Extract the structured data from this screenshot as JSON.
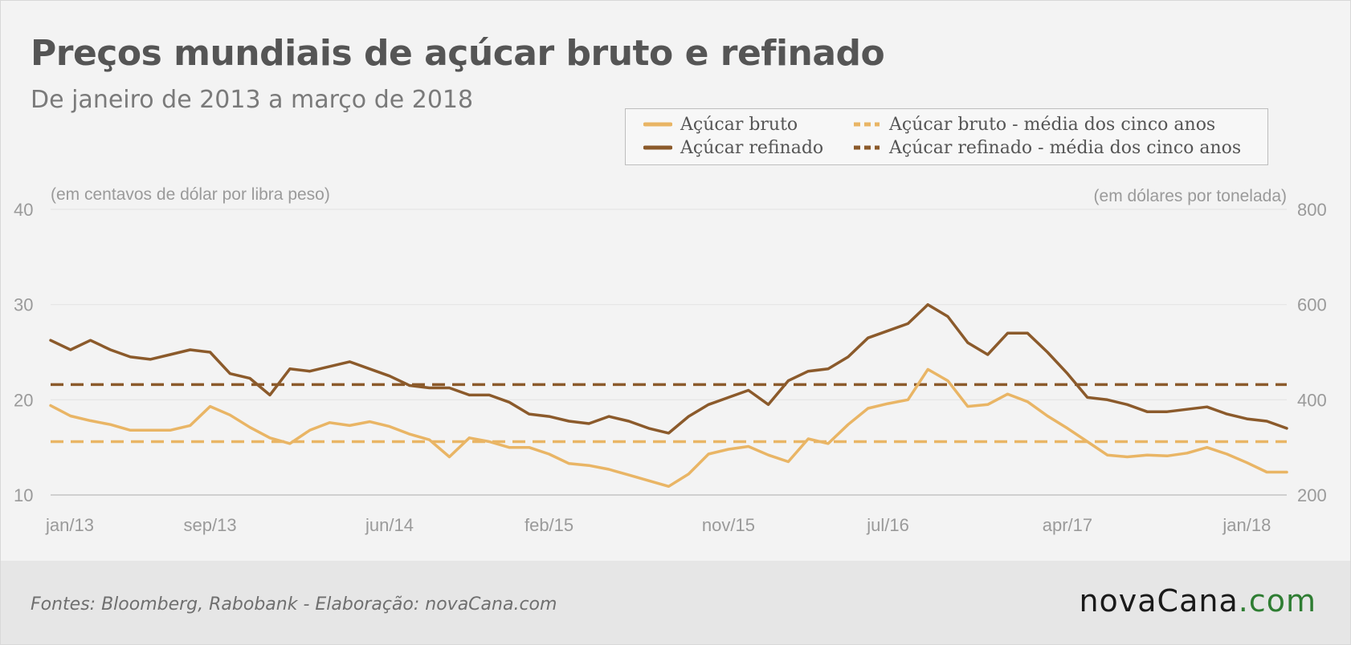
{
  "title": "Preços mundiais de açúcar bruto e refinado",
  "subtitle": "De janeiro de 2013 a março de 2018",
  "source": "Fontes: Bloomberg, Rabobank - Elaboração: novaCana.com",
  "logo": {
    "name": "novaCana",
    "tld": ".com"
  },
  "colors": {
    "bruto": "#e9b565",
    "refinado": "#8b5a2b",
    "grid": "#e4e4e4",
    "axis_text": "#9a9a9a"
  },
  "chart_data": {
    "type": "line",
    "title": "Preços mundiais de açúcar bruto e refinado",
    "subtitle": "De janeiro de 2013 a março de 2018",
    "left_axis": {
      "label": "(em centavos de dólar por libra peso)",
      "range": [
        10,
        40
      ],
      "ticks": [
        10,
        20,
        30,
        40
      ]
    },
    "right_axis": {
      "label": "(em dólares por tonelada)",
      "range": [
        200,
        800
      ],
      "ticks": [
        200,
        400,
        600,
        800
      ]
    },
    "x_range": [
      "2013-01",
      "2018-03"
    ],
    "x_ticks": [
      "jan/13",
      "sep/13",
      "jun/14",
      "feb/15",
      "nov/15",
      "jul/16",
      "apr/17",
      "jan/18"
    ],
    "x_tick_dates": [
      "2013-01",
      "2013-09",
      "2014-06",
      "2015-02",
      "2015-11",
      "2016-07",
      "2017-04",
      "2018-01"
    ],
    "grid": true,
    "legend_position": "top-right",
    "legend": [
      {
        "label": "Açúcar bruto",
        "style": "solid",
        "color": "#e9b565"
      },
      {
        "label": "Açúcar bruto - média dos cinco anos",
        "style": "dashed",
        "color": "#e9b565"
      },
      {
        "label": "Açúcar refinado",
        "style": "solid",
        "color": "#8b5a2b"
      },
      {
        "label": "Açúcar refinado - média dos cinco anos",
        "style": "dashed",
        "color": "#8b5a2b"
      }
    ],
    "series": [
      {
        "name": "Açúcar bruto",
        "axis": "left",
        "color": "#e9b565",
        "x": [
          "2013-01",
          "2013-02",
          "2013-03",
          "2013-04",
          "2013-05",
          "2013-06",
          "2013-07",
          "2013-08",
          "2013-09",
          "2013-10",
          "2013-11",
          "2013-12",
          "2014-01",
          "2014-02",
          "2014-03",
          "2014-04",
          "2014-05",
          "2014-06",
          "2014-07",
          "2014-08",
          "2014-09",
          "2014-10",
          "2014-11",
          "2014-12",
          "2015-01",
          "2015-02",
          "2015-03",
          "2015-04",
          "2015-05",
          "2015-06",
          "2015-07",
          "2015-08",
          "2015-09",
          "2015-10",
          "2015-11",
          "2015-12",
          "2016-01",
          "2016-02",
          "2016-03",
          "2016-04",
          "2016-05",
          "2016-06",
          "2016-07",
          "2016-08",
          "2016-09",
          "2016-10",
          "2016-11",
          "2016-12",
          "2017-01",
          "2017-02",
          "2017-03",
          "2017-04",
          "2017-05",
          "2017-06",
          "2017-07",
          "2017-08",
          "2017-09",
          "2017-10",
          "2017-11",
          "2017-12",
          "2018-01",
          "2018-02",
          "2018-03"
        ],
        "y": [
          19.4,
          18.3,
          17.8,
          17.4,
          16.8,
          16.8,
          16.8,
          17.3,
          19.3,
          18.4,
          17.1,
          16.0,
          15.4,
          16.8,
          17.6,
          17.3,
          17.7,
          17.2,
          16.4,
          15.8,
          14.0,
          16.0,
          15.6,
          15.0,
          15.0,
          14.3,
          13.3,
          13.1,
          12.7,
          12.1,
          11.5,
          10.9,
          12.2,
          14.3,
          14.8,
          15.1,
          14.2,
          13.5,
          15.9,
          15.4,
          17.4,
          19.1,
          19.6,
          20.0,
          23.2,
          22.0,
          19.3,
          19.5,
          20.6,
          19.8,
          18.3,
          17.0,
          15.6,
          14.2,
          14.0,
          14.2,
          14.1,
          14.4,
          15.0,
          14.3,
          13.4,
          12.4,
          12.4
        ]
      },
      {
        "name": "Açúcar refinado",
        "axis": "right",
        "color": "#8b5a2b",
        "x": [
          "2013-01",
          "2013-02",
          "2013-03",
          "2013-04",
          "2013-05",
          "2013-06",
          "2013-07",
          "2013-08",
          "2013-09",
          "2013-10",
          "2013-11",
          "2013-12",
          "2014-01",
          "2014-02",
          "2014-03",
          "2014-04",
          "2014-05",
          "2014-06",
          "2014-07",
          "2014-08",
          "2014-09",
          "2014-10",
          "2014-11",
          "2014-12",
          "2015-01",
          "2015-02",
          "2015-03",
          "2015-04",
          "2015-05",
          "2015-06",
          "2015-07",
          "2015-08",
          "2015-09",
          "2015-10",
          "2015-11",
          "2015-12",
          "2016-01",
          "2016-02",
          "2016-03",
          "2016-04",
          "2016-05",
          "2016-06",
          "2016-07",
          "2016-08",
          "2016-09",
          "2016-10",
          "2016-11",
          "2016-12",
          "2017-01",
          "2017-02",
          "2017-03",
          "2017-04",
          "2017-05",
          "2017-06",
          "2017-07",
          "2017-08",
          "2017-09",
          "2017-10",
          "2017-11",
          "2017-12",
          "2018-01",
          "2018-02",
          "2018-03"
        ],
        "y": [
          525,
          505,
          525,
          505,
          490,
          485,
          495,
          505,
          500,
          455,
          445,
          410,
          465,
          460,
          470,
          480,
          465,
          450,
          430,
          425,
          425,
          410,
          410,
          395,
          370,
          365,
          355,
          350,
          365,
          355,
          340,
          330,
          365,
          390,
          405,
          420,
          390,
          440,
          460,
          465,
          490,
          530,
          545,
          560,
          600,
          575,
          520,
          495,
          540,
          540,
          500,
          455,
          405,
          400,
          390,
          375,
          375,
          380,
          385,
          370,
          360,
          355,
          340
        ]
      }
    ],
    "five_year_average": [
      {
        "name": "Açúcar bruto - média dos cinco anos",
        "axis": "left",
        "value": 15.6
      },
      {
        "name": "Açúcar refinado - média dos cinco anos",
        "axis": "right",
        "value": 432
      }
    ]
  }
}
